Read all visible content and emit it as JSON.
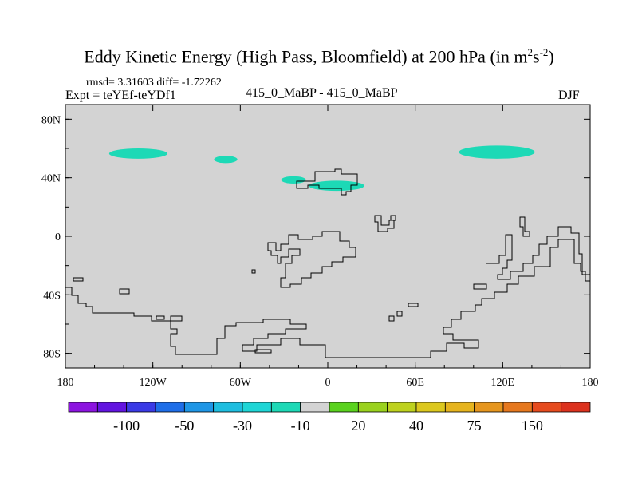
{
  "header": {
    "title_main": "Eddy Kinetic Energy (High Pass, Bloomfield) at 200 hPa (in m",
    "title_sup1": "2",
    "title_mid": "s",
    "title_sup2": "-2",
    "title_end": ")",
    "stats": "rmsd= 3.31603 diff= -1.72262",
    "expt": "Expt = teYEf-teYDf1",
    "case": "415_0_MaBP - 415_0_MaBP",
    "season": "DJF"
  },
  "chart_data": {
    "type": "heatmap",
    "title": "Eddy Kinetic Energy (High Pass, Bloomfield) at 200 hPa (in m2s-2)",
    "subtitle": "415_0_MaBP - 415_0_MaBP",
    "xlim": [
      -180,
      180
    ],
    "ylim": [
      -90,
      90
    ],
    "x_ticks": [
      {
        "value": -180,
        "label": "180"
      },
      {
        "value": -120,
        "label": "120W"
      },
      {
        "value": -60,
        "label": "60W"
      },
      {
        "value": 0,
        "label": "0"
      },
      {
        "value": 60,
        "label": "60E"
      },
      {
        "value": 120,
        "label": "120E"
      },
      {
        "value": 180,
        "label": "180"
      }
    ],
    "y_ticks": [
      {
        "value": 80,
        "label": "80N"
      },
      {
        "value": 40,
        "label": "40N"
      },
      {
        "value": 0,
        "label": "0"
      },
      {
        "value": -40,
        "label": "40S"
      },
      {
        "value": -80,
        "label": "80S"
      }
    ],
    "background_color": "#d3d3d3",
    "anomaly_color": "#1dd9b6",
    "anomaly_regions": [
      {
        "name": "north-pacific-east",
        "lon": [
          -150,
          -110
        ],
        "lat": [
          53,
          60
        ]
      },
      {
        "name": "north-america",
        "lon": [
          -78,
          -62
        ],
        "lat": [
          50,
          55
        ]
      },
      {
        "name": "mediterranean-west",
        "lon": [
          -32,
          -15
        ],
        "lat": [
          36,
          41
        ]
      },
      {
        "name": "mediterranean-east",
        "lon": [
          -13,
          25
        ],
        "lat": [
          31,
          38
        ]
      },
      {
        "name": "central-asia",
        "lon": [
          90,
          142
        ],
        "lat": [
          53,
          62
        ]
      }
    ],
    "colorbar": {
      "colors": [
        "#8c14e0",
        "#6214e0",
        "#3a3ae6",
        "#1e6ee8",
        "#1e96e6",
        "#1ebee0",
        "#1ed6d6",
        "#1dd9b6",
        "#d3d3d3",
        "#5ad21e",
        "#9ad21e",
        "#bed21e",
        "#dcc81e",
        "#e6b41e",
        "#e6961e",
        "#e6781e",
        "#e64b1e",
        "#dc321e"
      ],
      "labels": [
        {
          "boundary": 2,
          "text": "-100"
        },
        {
          "boundary": 4,
          "text": "-50"
        },
        {
          "boundary": 6,
          "text": "-30"
        },
        {
          "boundary": 8,
          "text": "-10"
        },
        {
          "boundary": 10,
          "text": "20"
        },
        {
          "boundary": 12,
          "text": "40"
        },
        {
          "boundary": 14,
          "text": "75"
        },
        {
          "boundary": 16,
          "text": "150"
        }
      ]
    }
  }
}
